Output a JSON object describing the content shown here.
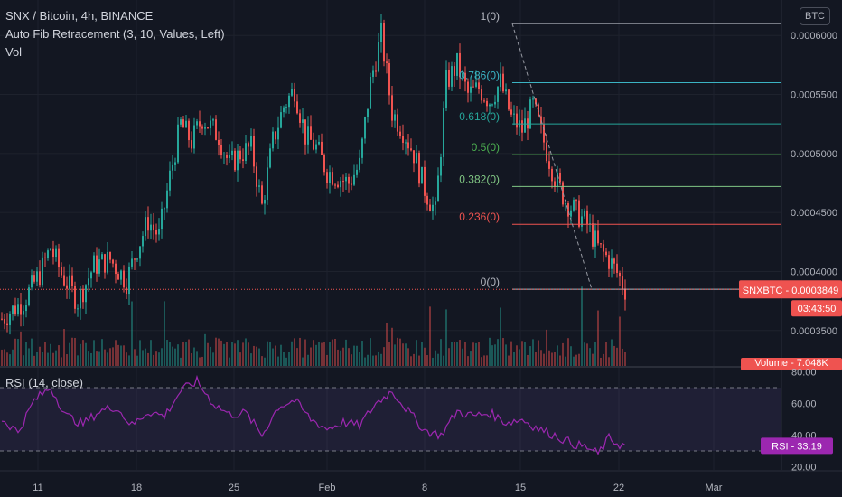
{
  "header": {
    "symbol_line": "SNX / Bitcoin, 4h, BINANCE",
    "indicator_fib": "Auto Fib Retracement (3, 10, Values, Left)",
    "indicator_vol": "Vol",
    "currency_badge": "BTC"
  },
  "rsi_panel": {
    "label": "RSI (14, close)",
    "badge": "RSI - 33.19",
    "badge_color": "#9c27b0"
  },
  "price_badges": {
    "symbol_price": "SNXBTC - 0.0003849",
    "countdown": "03:43:50",
    "volume": "Volume - 7.048K",
    "color": "#ef5350"
  },
  "colors": {
    "up": "#26a69a",
    "down": "#ef5350",
    "rsi_line": "#9c27b0",
    "background": "#131722"
  },
  "chart_data": {
    "type": "candlestick",
    "symbol": "SNXBTC",
    "interval": "4h",
    "exchange": "BINANCE",
    "x_tick_labels": [
      "11",
      "18",
      "25",
      "Feb",
      "8",
      "15",
      "22",
      "Mar"
    ],
    "price_axis": {
      "ticks": [
        "0.0006000",
        "0.0005500",
        "0.0005000",
        "0.0004500",
        "0.0004000",
        "0.0003500"
      ],
      "ylim": [
        0.00032,
        0.00063
      ]
    },
    "last_price": 0.0003849,
    "fib_levels": [
      {
        "label": "1(0)",
        "price": 0.00061,
        "color": "#b2b5be"
      },
      {
        "label": "0.786(0)",
        "price": 0.00056,
        "color": "#3bb3c3"
      },
      {
        "label": "0.618(0)",
        "price": 0.000525,
        "color": "#26a69a"
      },
      {
        "label": "0.5(0)",
        "price": 0.000499,
        "color": "#4caf50"
      },
      {
        "label": "0.382(0)",
        "price": 0.000472,
        "color": "#81c784"
      },
      {
        "label": "0.236(0)",
        "price": 0.00044,
        "color": "#ef5350"
      },
      {
        "label": "0(0)",
        "price": 0.000385,
        "color": "#b2b5be"
      }
    ],
    "price_path": [
      [
        0,
        0.00036
      ],
      [
        8,
        0.000375
      ],
      [
        14,
        0.000398
      ],
      [
        18,
        0.00042
      ],
      [
        22,
        0.000398
      ],
      [
        28,
        0.000375
      ],
      [
        34,
        0.000405
      ],
      [
        40,
        0.00041
      ],
      [
        46,
        0.000392
      ],
      [
        50,
        0.00042
      ],
      [
        54,
        0.000443
      ],
      [
        58,
        0.00043
      ],
      [
        62,
        0.00048
      ],
      [
        66,
        0.000525
      ],
      [
        70,
        0.00051
      ],
      [
        74,
        0.00053
      ],
      [
        80,
        0.000515
      ],
      [
        84,
        0.00049
      ],
      [
        88,
        0.0005
      ],
      [
        92,
        0.000505
      ],
      [
        96,
        0.000455
      ],
      [
        100,
        0.00051
      ],
      [
        104,
        0.00054
      ],
      [
        108,
        0.000555
      ],
      [
        112,
        0.000515
      ],
      [
        116,
        0.000505
      ],
      [
        120,
        0.000485
      ],
      [
        124,
        0.00048
      ],
      [
        128,
        0.000475
      ],
      [
        132,
        0.00049
      ],
      [
        136,
        0.00056
      ],
      [
        140,
        0.0006
      ],
      [
        144,
        0.000535
      ],
      [
        148,
        0.00052
      ],
      [
        152,
        0.0005
      ],
      [
        156,
        0.00047
      ],
      [
        160,
        0.00045
      ],
      [
        164,
        0.00056
      ],
      [
        168,
        0.000575
      ],
      [
        172,
        0.00055
      ],
      [
        176,
        0.000555
      ],
      [
        180,
        0.000545
      ],
      [
        184,
        0.00056
      ],
      [
        188,
        0.00053
      ],
      [
        192,
        0.00052
      ],
      [
        196,
        0.00054
      ],
      [
        200,
        0.00051
      ],
      [
        204,
        0.00048
      ],
      [
        208,
        0.00046
      ],
      [
        212,
        0.00045
      ],
      [
        216,
        0.00044
      ],
      [
        220,
        0.00042
      ],
      [
        224,
        0.00041
      ],
      [
        228,
        0.000395
      ],
      [
        230,
        0.000385
      ]
    ],
    "rsi_axis": {
      "ticks": [
        "80.00",
        "60.00",
        "40.00",
        "20.00"
      ],
      "ylim": [
        18,
        82
      ],
      "bands": [
        70,
        30
      ]
    },
    "rsi_path": [
      [
        0,
        50
      ],
      [
        6,
        42
      ],
      [
        12,
        62
      ],
      [
        18,
        70
      ],
      [
        24,
        52
      ],
      [
        30,
        47
      ],
      [
        36,
        55
      ],
      [
        42,
        58
      ],
      [
        48,
        46
      ],
      [
        54,
        55
      ],
      [
        60,
        52
      ],
      [
        66,
        68
      ],
      [
        72,
        74
      ],
      [
        78,
        60
      ],
      [
        84,
        53
      ],
      [
        90,
        54
      ],
      [
        96,
        40
      ],
      [
        102,
        58
      ],
      [
        108,
        62
      ],
      [
        114,
        50
      ],
      [
        120,
        44
      ],
      [
        126,
        48
      ],
      [
        132,
        46
      ],
      [
        138,
        60
      ],
      [
        144,
        68
      ],
      [
        150,
        55
      ],
      [
        156,
        43
      ],
      [
        162,
        40
      ],
      [
        168,
        55
      ],
      [
        174,
        52
      ],
      [
        180,
        54
      ],
      [
        186,
        48
      ],
      [
        192,
        50
      ],
      [
        198,
        44
      ],
      [
        204,
        40
      ],
      [
        210,
        35
      ],
      [
        216,
        32
      ],
      [
        220,
        28
      ],
      [
        224,
        38
      ],
      [
        228,
        34
      ],
      [
        230,
        33.19
      ]
    ],
    "volume_ylim": [
      0,
      40
    ]
  }
}
